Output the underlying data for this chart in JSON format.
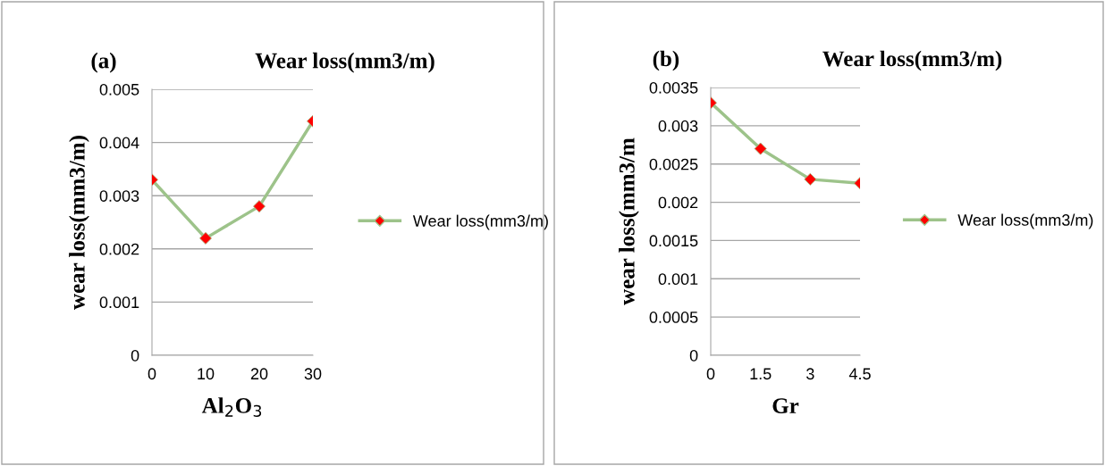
{
  "chart_data": [
    {
      "type": "line",
      "title": "Wear loss(mm3/m)",
      "annotations": [
        "(a)"
      ],
      "xlabel": "Al$_{2}$O$_{3}$",
      "ylabel": "wear loss(mm3/m)",
      "categories": [
        "0",
        "10",
        "20",
        "30"
      ],
      "series": [
        {
          "name": "Wear loss(mm3/m)",
          "color": "#9dc38a",
          "colors": [
            "#ff0000",
            "#ff0000",
            "#ff0000",
            "#ff0000"
          ],
          "values": [
            0.0033,
            0.0022,
            0.0028,
            0.0044
          ]
        }
      ],
      "ylim": [
        0,
        0.005
      ],
      "yticks": [
        0,
        0.001,
        0.002,
        0.003,
        0.004,
        0.005
      ],
      "grid": "y",
      "legend": "right",
      "marker": "diamond",
      "line_style": "solid"
    },
    {
      "type": "line",
      "title": "Wear loss(mm3/m)",
      "annotations": [
        "(b)"
      ],
      "xlabel": "Gr",
      "ylabel": "wear loss(mm3/m",
      "categories": [
        "0",
        "1.5",
        "3",
        "4.5"
      ],
      "series": [
        {
          "name": "Wear loss(mm3/m)",
          "color": "#9dc38a",
          "colors": [
            "#ff0000",
            "#ff0000",
            "#ff0000",
            "#ff0000"
          ],
          "values": [
            0.0033,
            0.0027,
            0.0023,
            0.00225
          ]
        }
      ],
      "ylim": [
        0,
        0.0035
      ],
      "yticks": [
        0,
        0.0005,
        0.001,
        0.0015,
        0.002,
        0.0025,
        0.003,
        0.0035
      ],
      "grid": "y",
      "legend": "right",
      "marker": "diamond",
      "line_style": "solid"
    }
  ]
}
